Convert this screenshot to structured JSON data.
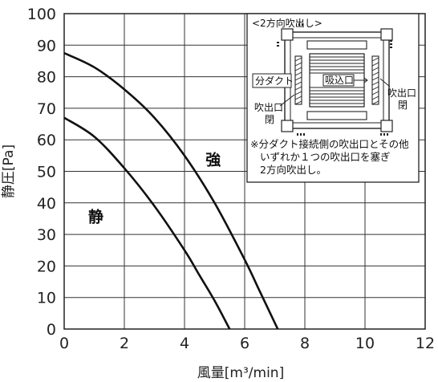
{
  "chart_data": {
    "type": "line",
    "xlabel": "風量[m³/min]",
    "ylabel": "静圧[Pa]",
    "xlim": [
      0,
      12
    ],
    "ylim": [
      0,
      100
    ],
    "xticks": [
      0,
      2,
      4,
      6,
      8,
      10,
      12
    ],
    "yticks": [
      0,
      10,
      20,
      30,
      40,
      50,
      60,
      70,
      80,
      90,
      100
    ],
    "grid": true,
    "series": [
      {
        "name": "強",
        "x": [
          0,
          1,
          2,
          3,
          4,
          5,
          6,
          6.5,
          7,
          7.1
        ],
        "y": [
          87.5,
          83,
          76,
          67,
          55,
          40,
          22,
          12,
          2,
          0
        ]
      },
      {
        "name": "静",
        "x": [
          0,
          1,
          2,
          3,
          4,
          4.5,
          5,
          5.5
        ],
        "y": [
          67,
          61,
          51,
          39,
          25,
          17,
          9,
          0
        ]
      }
    ],
    "annotations": {
      "inset_title": "<2方向吹出し>",
      "duct_label": "分ダクト",
      "intake_label": "吸込口",
      "outlet_left": [
        "吹出口",
        "閉"
      ],
      "outlet_right": [
        "吹出口",
        "閉"
      ],
      "note": [
        "※分ダクト接続側の吹出口とその他",
        "いずれか１つの吹出口を塞ぎ",
        "2方向吹出し。"
      ]
    }
  }
}
